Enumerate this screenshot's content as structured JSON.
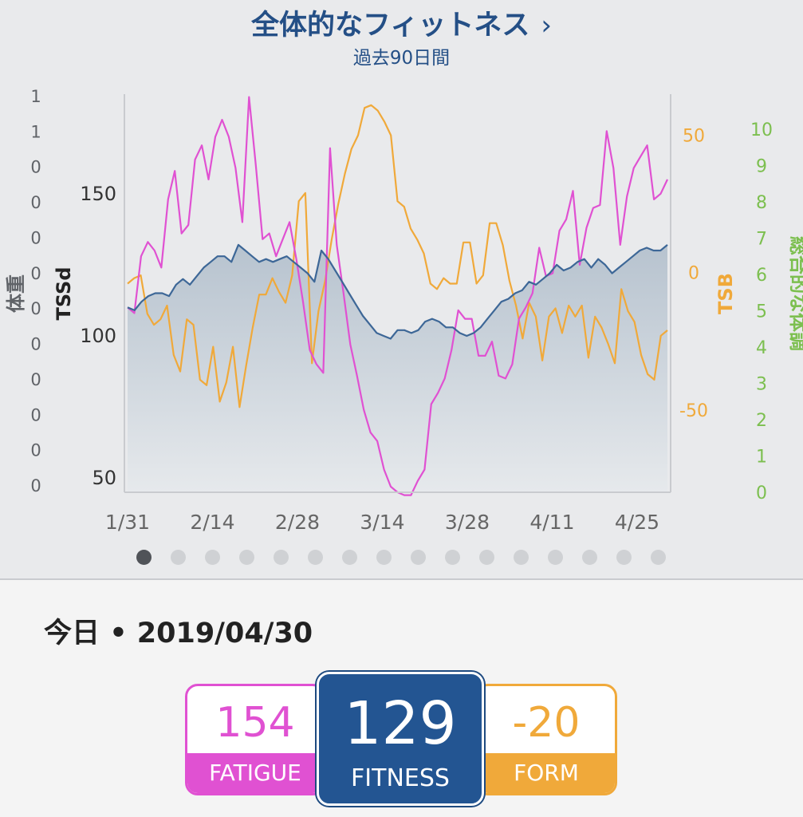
{
  "header": {
    "title": "全体的なフィットネス",
    "chevron": "›",
    "subtitle": "過去90日間"
  },
  "colors": {
    "fatigue": "#e051d2",
    "fitness": "#3d6797",
    "form": "#f0a93a",
    "overall": "#7cbf4f",
    "weight_axis": "#606368"
  },
  "chart_data": {
    "type": "line",
    "axes": {
      "weight": {
        "label": "体重",
        "ticks": [
          "1",
          "1",
          "0",
          "0",
          "0",
          "0",
          "0",
          "0",
          "0",
          "0",
          "0",
          "0"
        ]
      },
      "tssd": {
        "label": "TSSd",
        "ticks": [
          150,
          100,
          50
        ],
        "range": [
          45,
          185
        ]
      },
      "tsb": {
        "label": "TSB",
        "ticks": [
          50,
          0,
          -50
        ],
        "range": [
          -80,
          65
        ]
      },
      "overall": {
        "label": "総合的な体調",
        "ticks": [
          10,
          9,
          8,
          7,
          6,
          5,
          4,
          3,
          2,
          1,
          0
        ],
        "range": [
          0,
          10
        ]
      }
    },
    "x_labels": [
      "1/31",
      "2/14",
      "2/28",
      "3/14",
      "3/28",
      "4/11",
      "4/25"
    ],
    "series": [
      {
        "key": "fitness",
        "values": [
          110,
          109,
          112,
          114,
          115,
          115,
          114,
          118,
          120,
          118,
          121,
          124,
          126,
          128,
          128,
          126,
          132,
          130,
          128,
          126,
          127,
          126,
          127,
          128,
          126,
          124,
          122,
          119,
          130,
          127,
          123,
          119,
          115,
          111,
          107,
          104,
          101,
          100,
          99,
          102,
          102,
          101,
          102,
          105,
          106,
          105,
          103,
          103,
          101,
          100,
          101,
          103,
          106,
          109,
          112,
          113,
          115,
          116,
          119,
          118,
          120,
          122,
          125,
          123,
          124,
          126,
          127,
          124,
          127,
          125,
          122,
          124,
          126,
          128,
          130,
          131,
          130,
          130,
          132
        ]
      },
      {
        "key": "fatigue",
        "values": [
          110,
          108,
          128,
          133,
          130,
          124,
          148,
          158,
          136,
          139,
          162,
          167,
          155,
          170,
          176,
          170,
          159,
          140,
          184,
          160,
          134,
          136,
          128,
          134,
          140,
          127,
          112,
          95,
          90,
          87,
          166,
          132,
          115,
          97,
          86,
          74,
          66,
          63,
          53,
          47,
          45,
          44,
          44,
          49,
          53,
          76,
          80,
          85,
          95,
          109,
          106,
          106,
          93,
          93,
          98,
          86,
          85,
          90,
          106,
          110,
          115,
          131,
          121,
          122,
          137,
          141,
          151,
          125,
          138,
          145,
          146,
          172,
          159,
          132,
          149,
          159,
          163,
          167,
          148
        ],
        "tail": [
          150,
          155
        ]
      },
      {
        "key": "form",
        "values": [
          -4,
          -2,
          -1,
          -15,
          -19,
          -17,
          -12,
          -30,
          -36,
          -17,
          -19,
          -39,
          -41,
          -27,
          -47,
          -40,
          -27,
          -49,
          -34,
          -20,
          -8,
          -8,
          -2,
          -7,
          -11,
          -1,
          26,
          29,
          -33,
          -14,
          -3,
          12,
          25,
          36,
          45,
          50,
          60,
          61,
          59,
          55,
          50,
          26,
          24,
          16,
          12,
          7,
          -4,
          -6,
          -2,
          -4,
          -4,
          11,
          11,
          -4,
          -1,
          18,
          18,
          10,
          -3,
          -12,
          -24,
          -11,
          -16,
          -32,
          -16,
          -13,
          -22,
          -12,
          -16,
          -12,
          -31,
          -16,
          -20,
          -26,
          -33,
          -6,
          -14,
          -18,
          -30,
          -37,
          -39,
          -23,
          -21
        ]
      }
    ]
  },
  "pager": {
    "count": 16,
    "active": 0
  },
  "today": {
    "label": "今日",
    "separator": "•",
    "date": "2019/04/30"
  },
  "cards": {
    "fatigue": {
      "value": "154",
      "label": "FATIGUE"
    },
    "fitness": {
      "value": "129",
      "label": "FITNESS"
    },
    "form": {
      "value": "-20",
      "label": "FORM"
    }
  }
}
